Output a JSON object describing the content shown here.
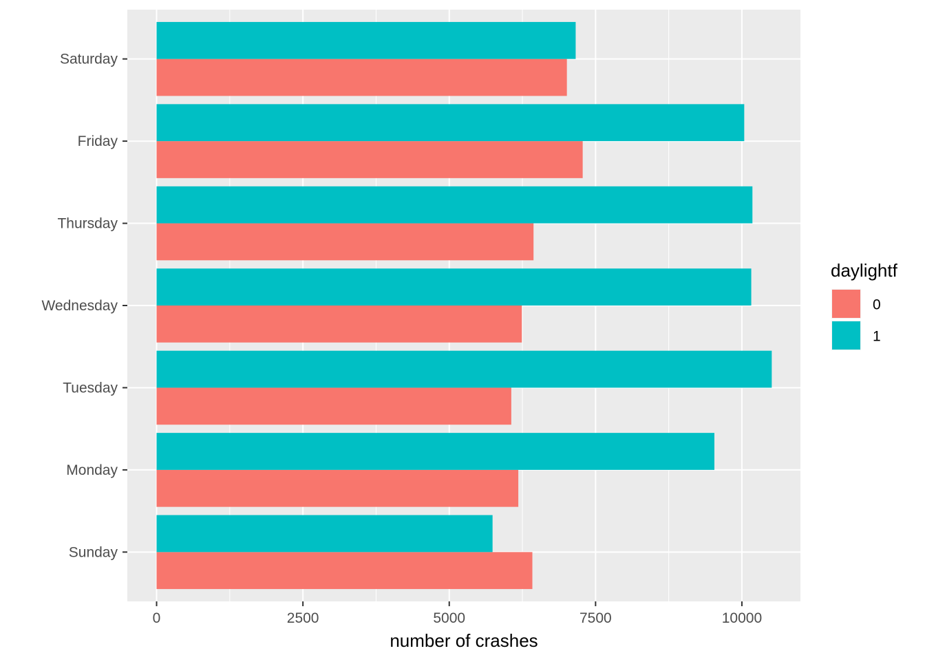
{
  "chart_data": {
    "type": "bar",
    "orientation": "horizontal",
    "categories": [
      "Sunday",
      "Monday",
      "Tuesday",
      "Wednesday",
      "Thursday",
      "Friday",
      "Saturday"
    ],
    "series": [
      {
        "name": "0",
        "color": "#F8766D",
        "values": [
          6420,
          6180,
          6060,
          6240,
          6440,
          7280,
          7010
        ]
      },
      {
        "name": "1",
        "color": "#00BFC4",
        "values": [
          5740,
          9530,
          10510,
          10160,
          10180,
          10040,
          7160
        ]
      }
    ],
    "xlabel": "number of crashes",
    "ylabel": "",
    "xlim": [
      -500,
      11000
    ],
    "xticks": [
      0,
      2500,
      5000,
      7500,
      10000
    ],
    "xtick_labels": [
      "0",
      "2500",
      "5000",
      "7500",
      "10000"
    ],
    "grid": true,
    "legend": {
      "title": "daylightf",
      "position": "right"
    },
    "panel_color": "#EBEBEB"
  }
}
